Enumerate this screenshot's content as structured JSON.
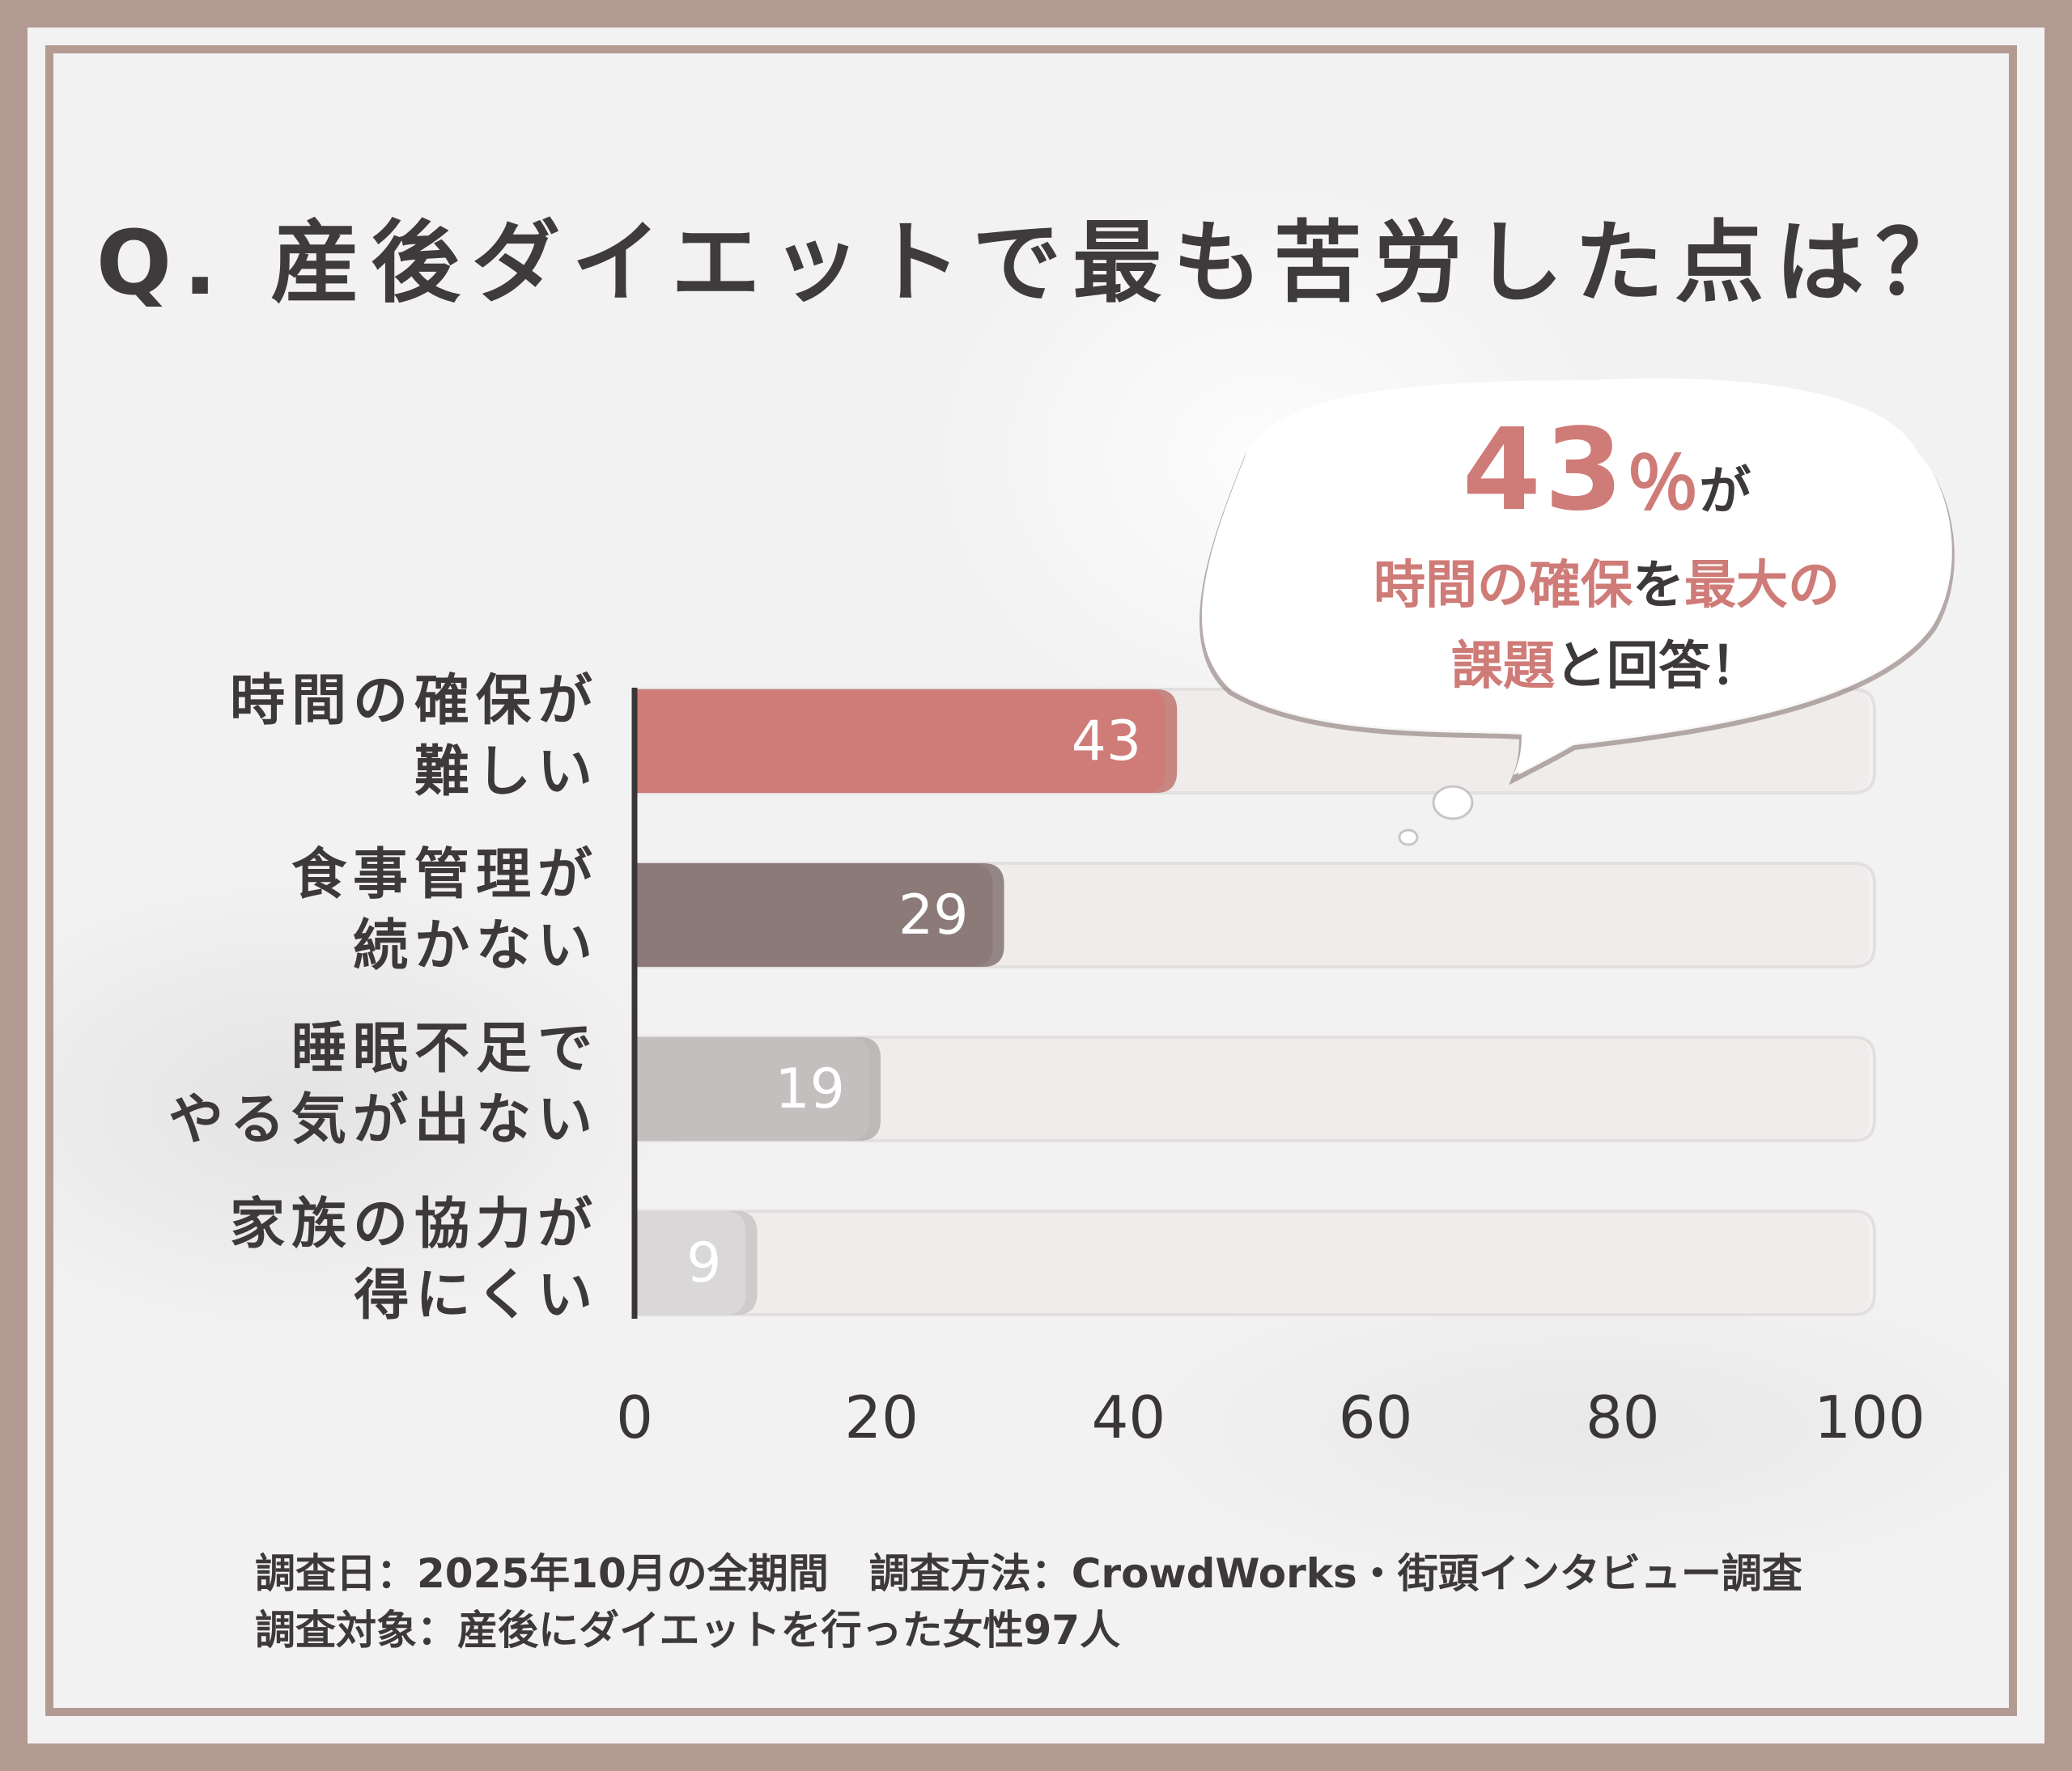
{
  "title": "Q. 産後ダイエットで最も苦労した点は？",
  "callout": {
    "value": "43",
    "unit": "％",
    "particle": "が",
    "line2_a": "時間の確保",
    "line2_b": "を",
    "line2_c": "最大の",
    "line3_a": "課題",
    "line3_b": "と回答！"
  },
  "chart_data": {
    "type": "bar",
    "orientation": "horizontal",
    "categories": [
      [
        "時間の確保が",
        "難しい"
      ],
      [
        "食事管理が",
        "続かない"
      ],
      [
        "睡眠不足で",
        "やる気が出ない"
      ],
      [
        "家族の協力が",
        "得にくい"
      ]
    ],
    "values": [
      43,
      29,
      19,
      9
    ],
    "data_labels": [
      "43",
      "29",
      "19",
      "9"
    ],
    "xticks": [
      "0",
      "20",
      "40",
      "60",
      "80",
      "100"
    ],
    "xlim": [
      0,
      100
    ],
    "bar_colors": [
      "#cf7b77",
      "#8c7a78",
      "#c2bfbe",
      "#d9d7d7"
    ],
    "track_color": "#efeceb",
    "grid": false
  },
  "notes": {
    "line1": "調査日：2025年10月の全期間　調査方法：CrowdWorks・街頭インタビュー調査",
    "line2": "調査対象：産後にダイエットを行った女性97人"
  }
}
